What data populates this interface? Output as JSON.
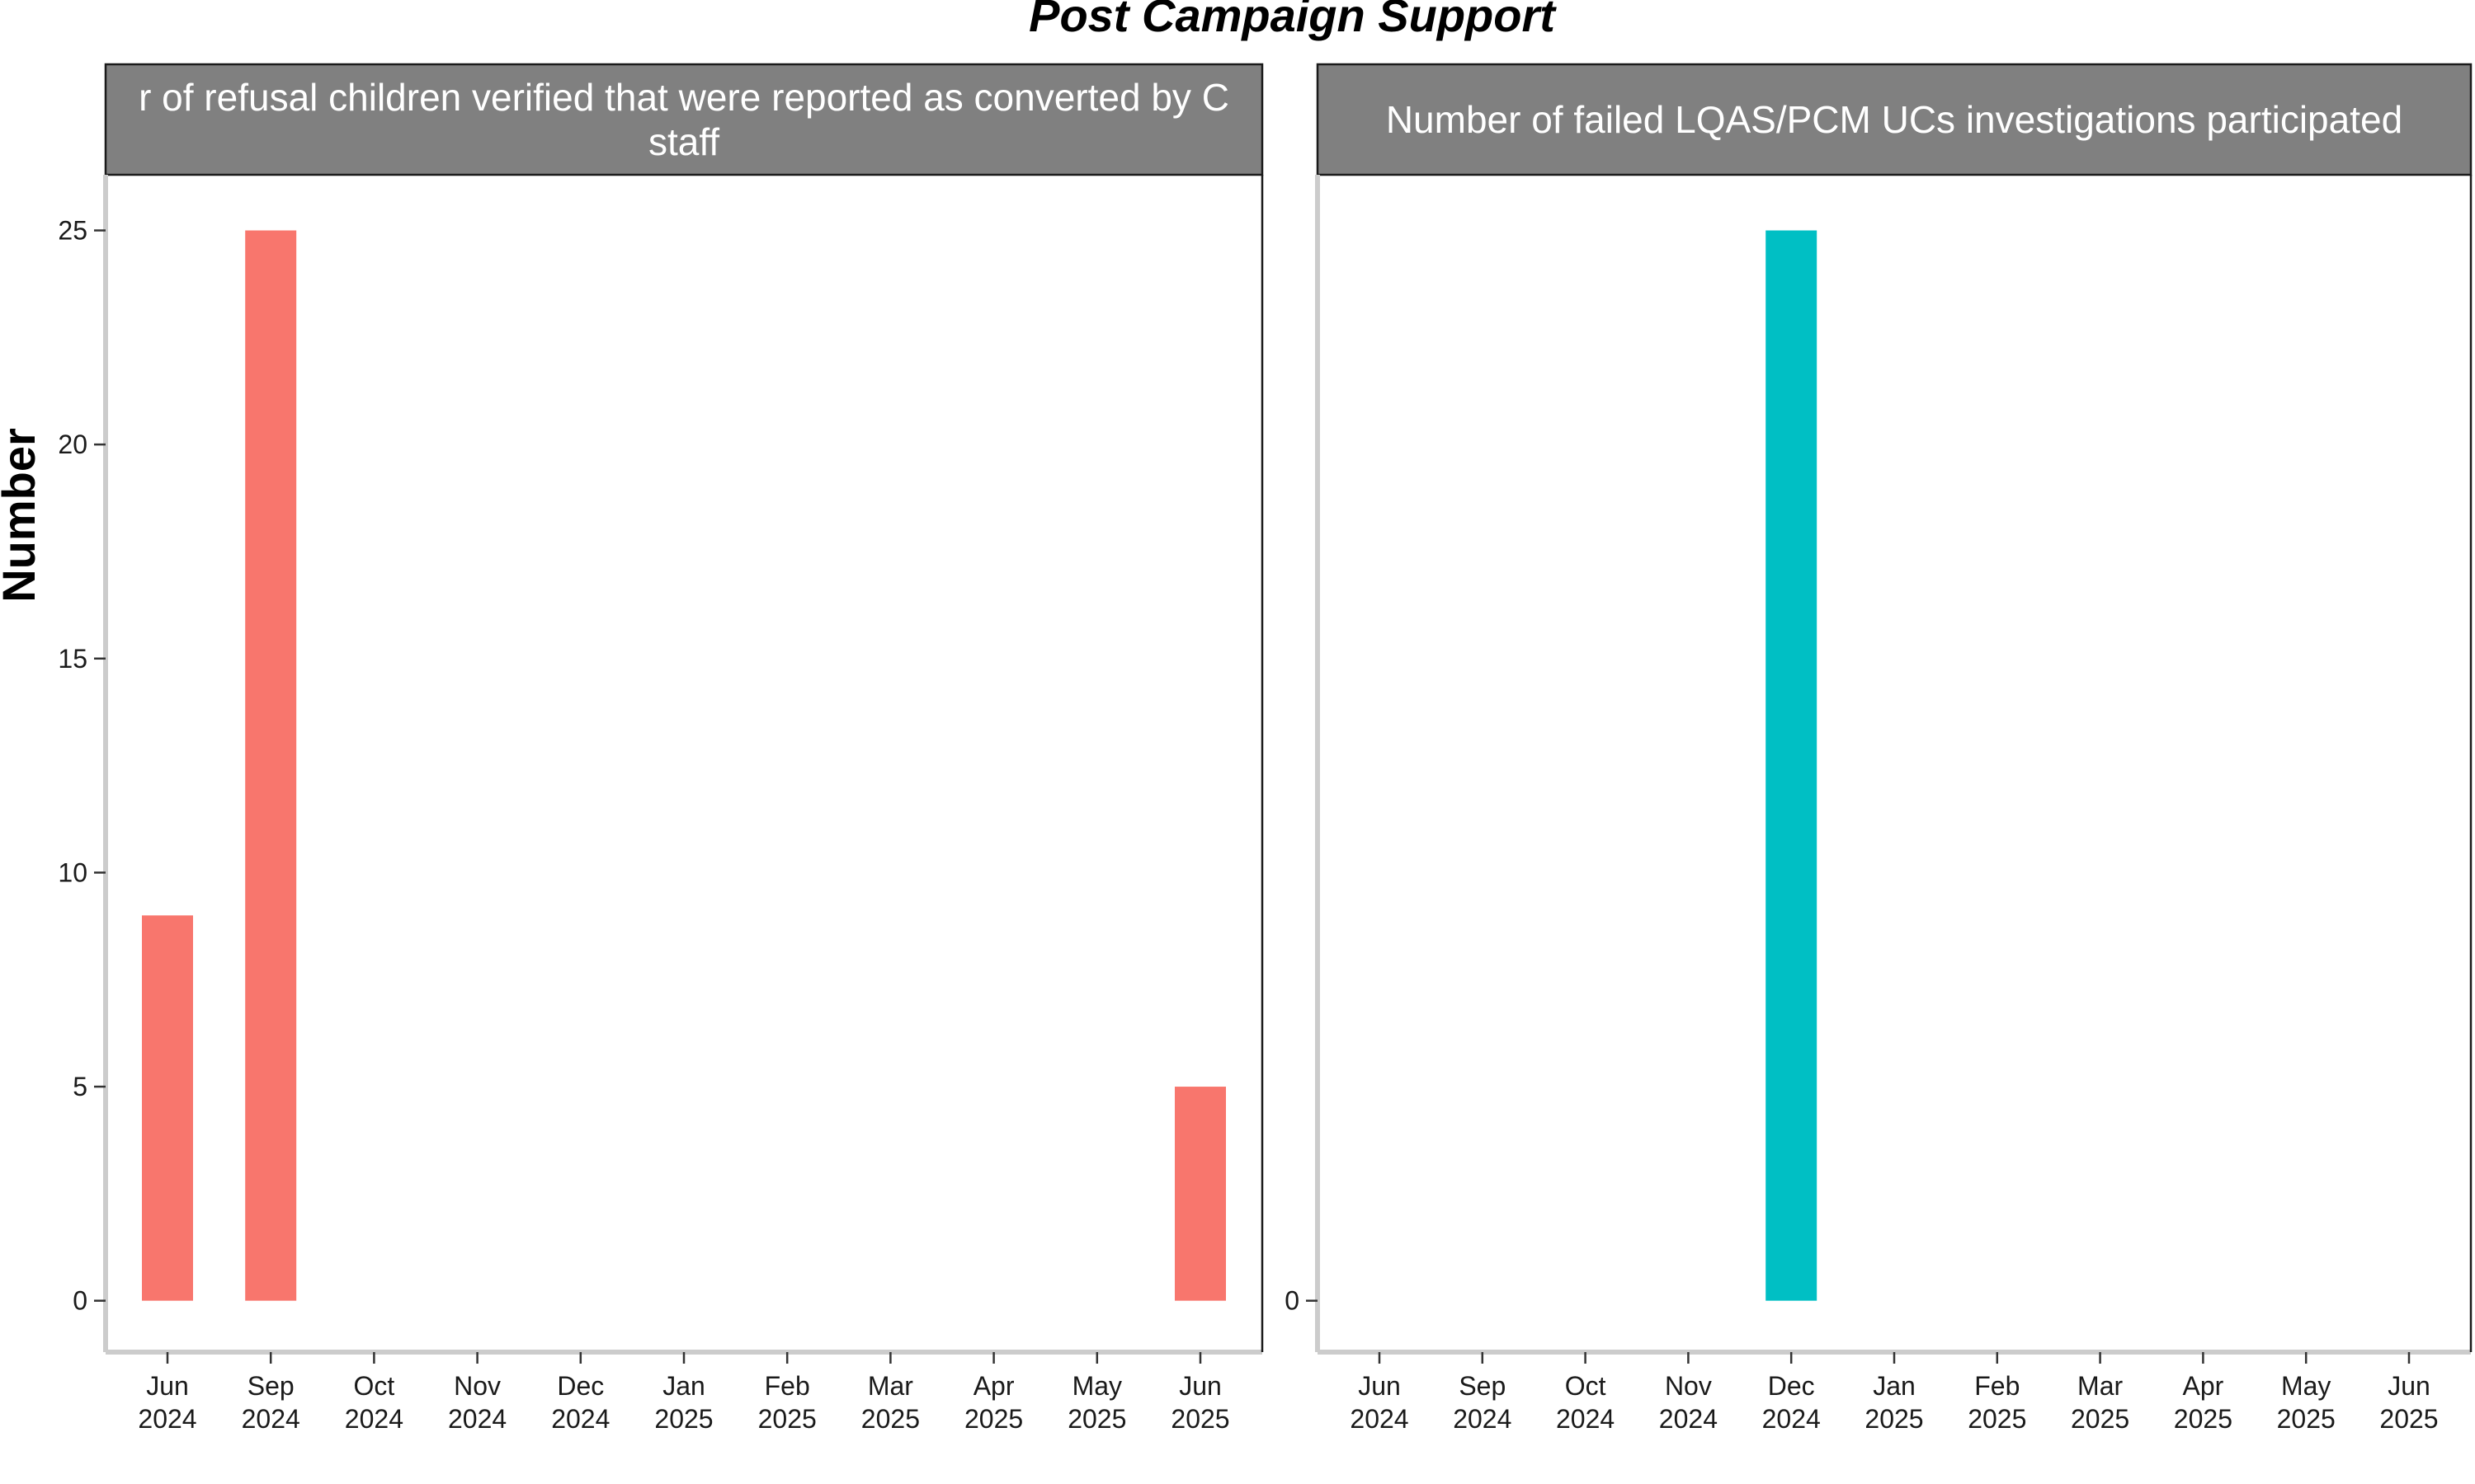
{
  "chart_data": {
    "type": "bar",
    "title": "Post Campaign Support",
    "ylabel": "Number",
    "xlabel": "",
    "grid": false,
    "legend": "none",
    "x_ticks": [
      {
        "month": "Jun",
        "year": "2024"
      },
      {
        "month": "Sep",
        "year": "2024"
      },
      {
        "month": "Oct",
        "year": "2024"
      },
      {
        "month": "Nov",
        "year": "2024"
      },
      {
        "month": "Dec",
        "year": "2024"
      },
      {
        "month": "Jan",
        "year": "2025"
      },
      {
        "month": "Feb",
        "year": "2025"
      },
      {
        "month": "Mar",
        "year": "2025"
      },
      {
        "month": "Apr",
        "year": "2025"
      },
      {
        "month": "May",
        "year": "2025"
      },
      {
        "month": "Jun",
        "year": "2025"
      }
    ],
    "panels": [
      {
        "strip_lines": [
          "r of refusal children verified that were reported as converted by C",
          "staff"
        ],
        "color": "#F8766D",
        "ylim": [
          -1.2,
          26.3
        ],
        "y_ticks": [
          0,
          5,
          10,
          15,
          20,
          25
        ],
        "data": [
          {
            "x": "Jun 2024",
            "value": 9
          },
          {
            "x": "Sep 2024",
            "value": 25
          },
          {
            "x": "Jun 2025",
            "value": 5
          }
        ]
      },
      {
        "strip_lines": [
          "Number of failed LQAS/PCM UCs investigations participated"
        ],
        "color": "#00BFC4",
        "ylim": [
          -1.2,
          26.3
        ],
        "y_ticks": [
          0
        ],
        "data": [
          {
            "x": "Dec 2024",
            "value": 25
          }
        ]
      }
    ]
  }
}
